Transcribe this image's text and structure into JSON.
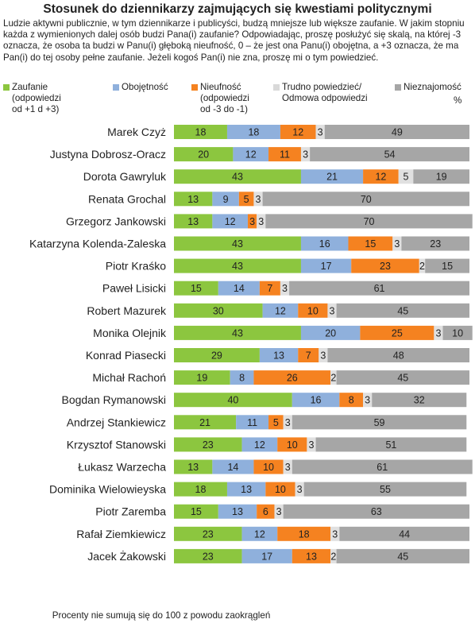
{
  "title": "Stosunek do dziennikarzy zajmujących się kwestiami politycznymi",
  "question": "Ludzie aktywni publicznie, w tym dziennikarze i publicyści, budzą mniejsze lub większe zaufanie. W jakim stopniu każda z wymienionych dalej osób budzi Pana(i) zaufanie? Odpowiadając, proszę posłużyć się skalą, na której -3 oznacza, że osoba ta budzi w Panu(i) głęboką nieufność, 0 – że jest ona Panu(i) obojętna, a +3 oznacza, że ma Pan(i) do tej osoby pełne zaufanie. Jeżeli kogoś Pan(i) nie zna, proszę mi o tym powiedzieć.",
  "footnote": "Procenty nie sumują się do 100 z powodu zaokrągleń",
  "unit_label": "%",
  "legend": [
    {
      "label": "Zaufanie\n(odpowiedzi\nod +1 d +3)",
      "color": "#8cc63f"
    },
    {
      "label": "Obojętność",
      "color": "#8fb0dc"
    },
    {
      "label": "Nieufność\n(odpowiedzi\nod -3 do -1)",
      "color": "#f58220"
    },
    {
      "label": "Trudno powiedzieć/\nOdmowa odpowiedzi",
      "color": "#d9d9d9"
    },
    {
      "label": "Nieznajomość",
      "color": "#a6a6a6"
    }
  ],
  "chart_data": {
    "type": "bar",
    "orientation": "horizontal",
    "stacked": true,
    "categories": [
      "Marek Czyż",
      "Justyna Dobrosz-Oracz",
      "Dorota Gawryluk",
      "Renata Grochal",
      "Grzegorz Jankowski",
      "Katarzyna Kolenda-Zaleska",
      "Piotr Kraśko",
      "Paweł Lisicki",
      "Robert Mazurek",
      "Monika Olejnik",
      "Konrad Piasecki",
      "Michał Rachoń",
      "Bogdan Rymanowski",
      "Andrzej Stankiewicz",
      "Krzysztof Stanowski",
      "Łukasz Warzecha",
      "Dominika Wielowieyska",
      "Piotr Zaremba",
      "Rafał Ziemkiewicz",
      "Jacek Żakowski"
    ],
    "series": [
      {
        "name": "Zaufanie",
        "color": "#8cc63f",
        "values": [
          18,
          20,
          43,
          13,
          13,
          43,
          43,
          15,
          30,
          43,
          29,
          19,
          40,
          21,
          23,
          13,
          18,
          15,
          23,
          23
        ]
      },
      {
        "name": "Obojętność",
        "color": "#8fb0dc",
        "values": [
          18,
          12,
          21,
          9,
          12,
          16,
          17,
          14,
          12,
          20,
          13,
          8,
          16,
          11,
          12,
          14,
          13,
          13,
          12,
          17
        ]
      },
      {
        "name": "Nieufność",
        "color": "#f58220",
        "values": [
          12,
          11,
          12,
          5,
          3,
          15,
          23,
          7,
          10,
          25,
          7,
          26,
          8,
          5,
          10,
          10,
          10,
          6,
          18,
          13
        ]
      },
      {
        "name": "Trudno powiedzieć/Odmowa odpowiedzi",
        "color": "#e0e0e0",
        "values": [
          3,
          3,
          5,
          3,
          3,
          3,
          2,
          3,
          3,
          3,
          3,
          2,
          3,
          3,
          3,
          3,
          3,
          3,
          3,
          2
        ]
      },
      {
        "name": "Nieznajomość",
        "color": "#a6a6a6",
        "values": [
          49,
          54,
          19,
          70,
          70,
          23,
          15,
          61,
          45,
          10,
          48,
          45,
          32,
          59,
          51,
          61,
          55,
          63,
          44,
          45
        ]
      }
    ],
    "xlim": [
      0,
      100
    ]
  }
}
